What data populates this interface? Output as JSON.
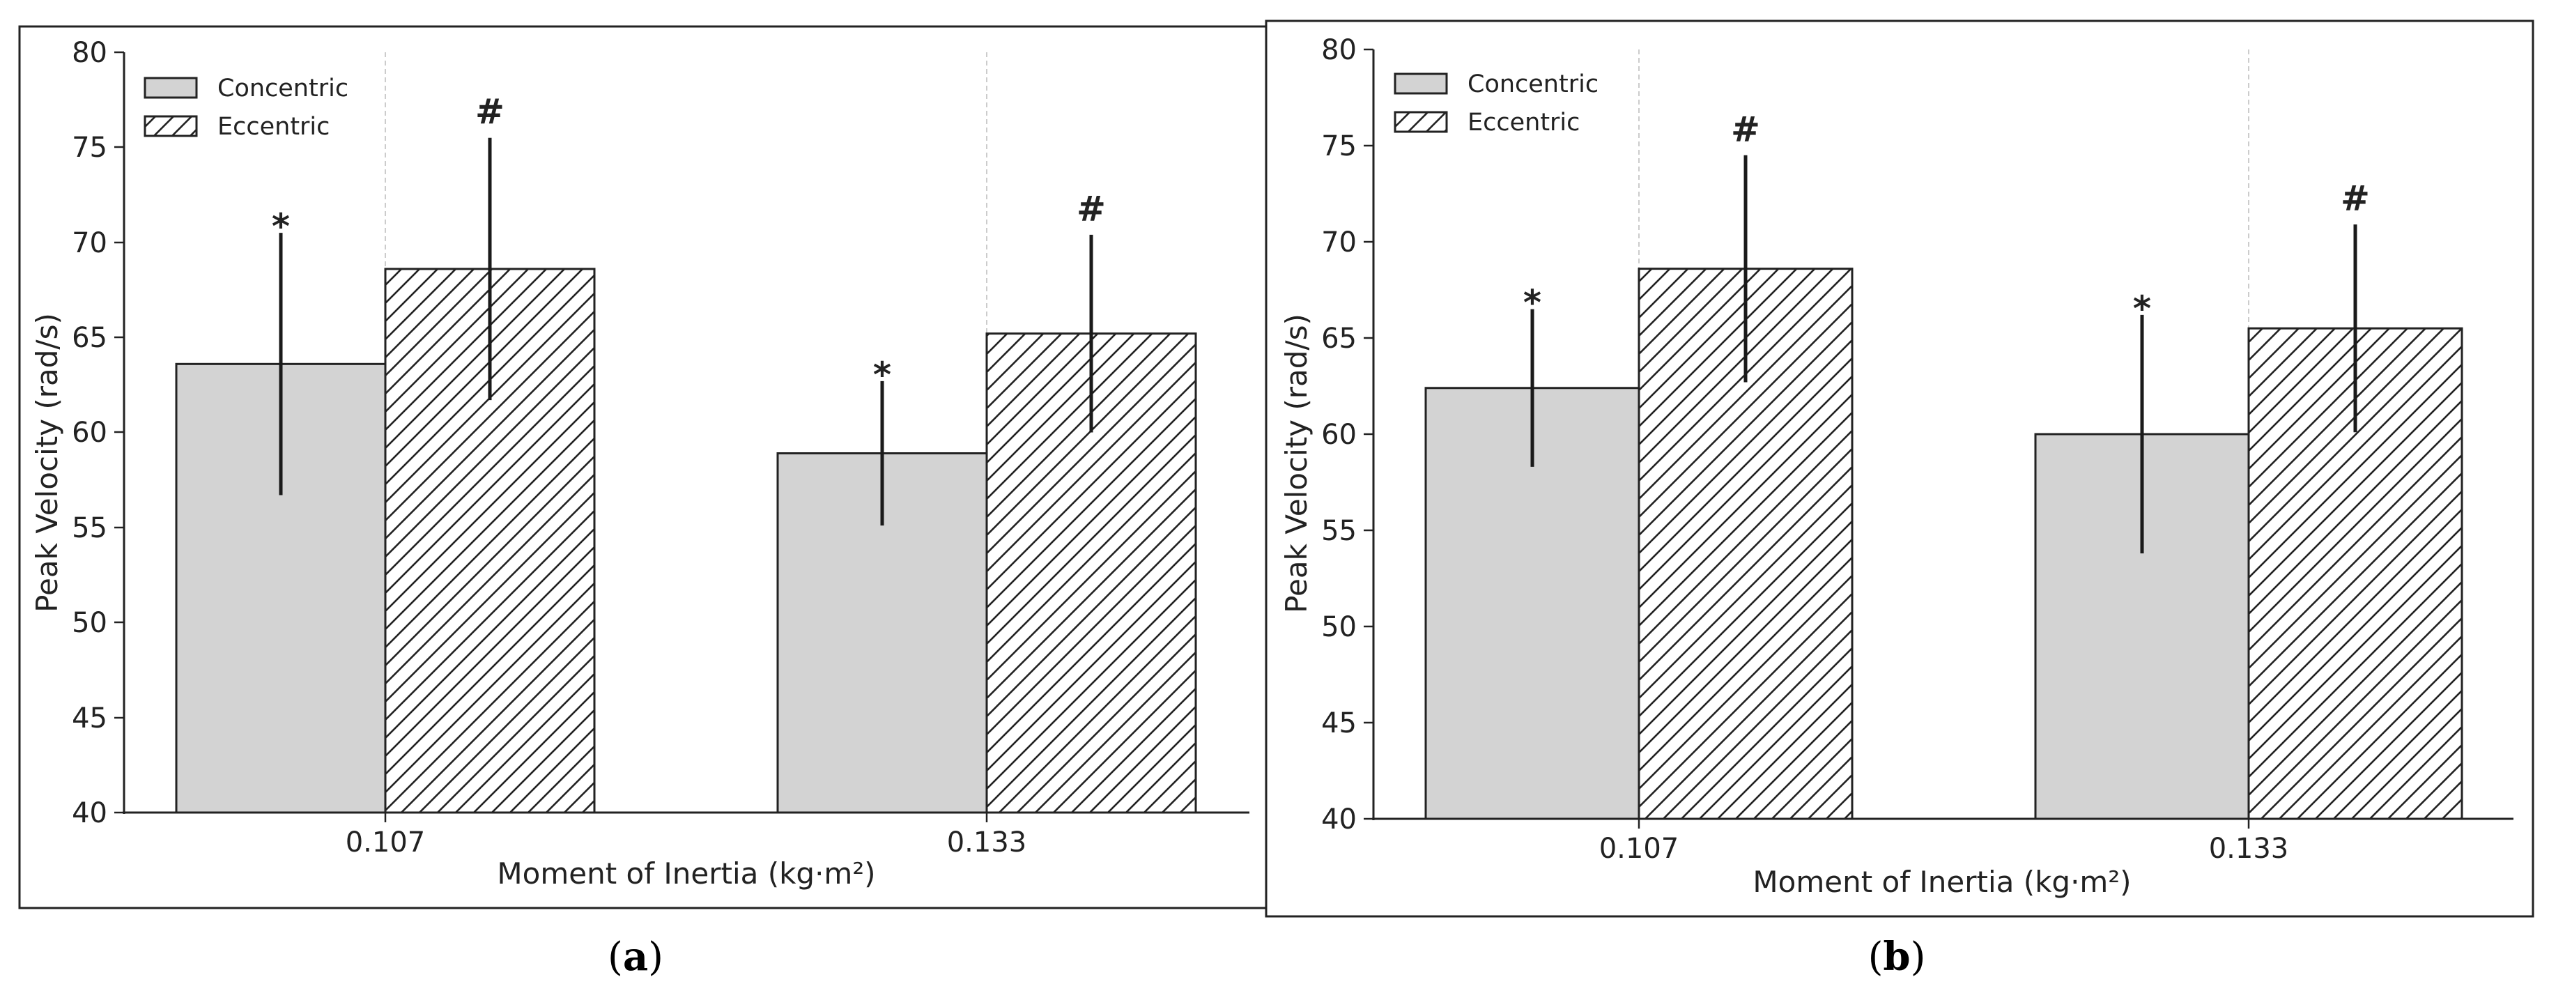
{
  "chart_data": [
    {
      "type": "bar",
      "panel_label": "(a)",
      "panel_letter": "a",
      "categories": [
        "0.107",
        "0.133"
      ],
      "series": [
        {
          "name": "Concentric",
          "values": [
            63.6,
            58.9
          ],
          "errors": [
            6.9,
            3.8
          ],
          "pattern": "solid",
          "color": "#d3d3d3",
          "sig": [
            "*",
            "*"
          ]
        },
        {
          "name": "Eccentric",
          "values": [
            68.6,
            65.2
          ],
          "errors": [
            6.9,
            5.2
          ],
          "pattern": "hatch",
          "color": "#ffffff",
          "sig": [
            "#",
            "#"
          ]
        }
      ],
      "xlabel": "Moment of Inertia (kg·m²)",
      "ylabel": "Peak Velocity (rad/s)",
      "ylim": [
        40,
        80
      ],
      "yticks": [
        "40",
        "45",
        "50",
        "55",
        "60",
        "65",
        "70",
        "75",
        "80"
      ],
      "grid": "vertical dashed at bar groups",
      "legend_position": "top-left"
    },
    {
      "type": "bar",
      "panel_label": "(b)",
      "panel_letter": "b",
      "categories": [
        "0.107",
        "0.133"
      ],
      "series": [
        {
          "name": "Concentric",
          "values": [
            62.4,
            60.0
          ],
          "errors": [
            4.1,
            6.2
          ],
          "pattern": "solid",
          "color": "#d3d3d3",
          "sig": [
            "*",
            "*"
          ]
        },
        {
          "name": "Eccentric",
          "values": [
            68.6,
            65.5
          ],
          "errors": [
            5.9,
            5.4
          ],
          "pattern": "hatch",
          "color": "#ffffff",
          "sig": [
            "#",
            "#"
          ]
        }
      ],
      "xlabel": "Moment of Inertia (kg·m²)",
      "ylabel": "Peak Velocity (rad/s)",
      "ylim": [
        40,
        80
      ],
      "yticks": [
        "40",
        "45",
        "50",
        "55",
        "60",
        "65",
        "70",
        "75",
        "80"
      ],
      "grid": "vertical dashed at bar groups",
      "legend_position": "top-left"
    }
  ]
}
